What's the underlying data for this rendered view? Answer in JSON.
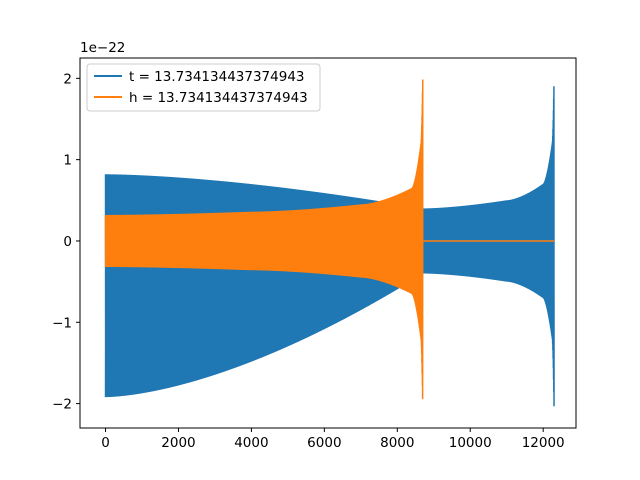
{
  "chart_data": {
    "type": "line",
    "title": "",
    "xlabel": "",
    "ylabel": "",
    "y_offset_label": "1e−22",
    "xlim": [
      -700,
      12900
    ],
    "ylim": [
      -2.3,
      2.25
    ],
    "x_ticks": [
      0,
      2000,
      4000,
      6000,
      8000,
      10000,
      12000
    ],
    "x_tick_labels": [
      "0",
      "2000",
      "4000",
      "6000",
      "8000",
      "10000",
      "12000"
    ],
    "y_ticks": [
      2,
      1,
      0,
      -1,
      -2
    ],
    "y_tick_labels": [
      "2",
      "1",
      "0",
      "−1",
      "−2"
    ],
    "grid": false,
    "legend_position": "upper-left",
    "series": [
      {
        "name": "t = 13.734134437374943",
        "color": "#1f77b4",
        "description_points": [
          {
            "x": 0,
            "y_max": 0.82,
            "y_min": -1.92
          },
          {
            "x": 8700,
            "y_max": 0.4,
            "y_min": -0.4
          },
          {
            "x": 11000,
            "y_max": 0.5,
            "y_min": -0.5
          },
          {
            "x": 12000,
            "y_max": 0.7,
            "y_min": -0.7
          },
          {
            "x": 12250,
            "y_max": 1.2,
            "y_min": -1.2
          },
          {
            "x": 12300,
            "y_max": 2.05,
            "y_min": -2.1
          }
        ],
        "x_range": [
          0,
          12300
        ]
      },
      {
        "name": "h = 13.734134437374943",
        "color": "#ff7f0e",
        "description_points": [
          {
            "x": 0,
            "y_max": 0.32,
            "y_min": -0.32
          },
          {
            "x": 4000,
            "y_max": 0.36,
            "y_min": -0.36
          },
          {
            "x": 7000,
            "y_max": 0.45,
            "y_min": -0.45
          },
          {
            "x": 8400,
            "y_max": 0.65,
            "y_min": -0.65
          },
          {
            "x": 8650,
            "y_max": 1.2,
            "y_min": -1.2
          },
          {
            "x": 8700,
            "y_max": 2.05,
            "y_min": -2.1
          }
        ],
        "x_range": [
          0,
          12300
        ],
        "flat_after": 8720
      }
    ]
  }
}
